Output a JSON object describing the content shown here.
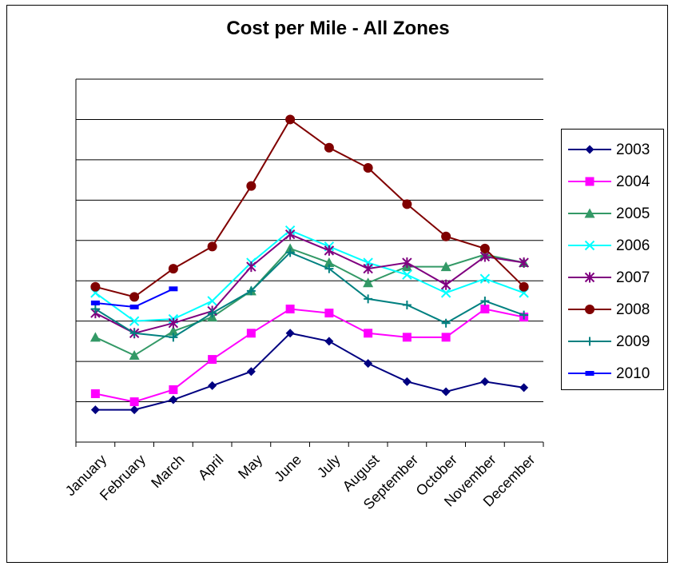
{
  "chart_data": {
    "type": "line",
    "title": "Cost per Mile - All Zones",
    "xlabel": "",
    "ylabel": "",
    "categories": [
      "January",
      "February",
      "March",
      "April",
      "May",
      "June",
      "July",
      "August",
      "September",
      "October",
      "November",
      "December"
    ],
    "ylim": [
      0,
      9
    ],
    "grid": true,
    "legend_position": "right",
    "series": [
      {
        "name": "2003",
        "color": "#000080",
        "marker": "diamond",
        "values": [
          0.8,
          0.8,
          1.05,
          1.4,
          1.75,
          2.7,
          2.5,
          1.95,
          1.5,
          1.25,
          1.5,
          1.35
        ]
      },
      {
        "name": "2004",
        "color": "#FF00FF",
        "marker": "square",
        "values": [
          1.2,
          1.0,
          1.3,
          2.05,
          2.7,
          3.3,
          3.2,
          2.7,
          2.6,
          2.6,
          3.3,
          3.1
        ]
      },
      {
        "name": "2005",
        "color": "#339966",
        "marker": "triangle",
        "values": [
          2.6,
          2.15,
          2.75,
          3.1,
          3.75,
          4.8,
          4.45,
          3.95,
          4.35,
          4.35,
          4.65,
          4.45
        ]
      },
      {
        "name": "2006",
        "color": "#00FFFF",
        "marker": "x",
        "values": [
          3.7,
          3.0,
          3.05,
          3.5,
          4.45,
          5.25,
          4.85,
          4.45,
          4.15,
          3.7,
          4.05,
          3.7
        ]
      },
      {
        "name": "2007",
        "color": "#800080",
        "marker": "star",
        "values": [
          3.2,
          2.7,
          2.95,
          3.25,
          4.35,
          5.15,
          4.75,
          4.3,
          4.45,
          3.9,
          4.6,
          4.45
        ]
      },
      {
        "name": "2008",
        "color": "#800000",
        "marker": "circle",
        "values": [
          3.85,
          3.6,
          4.3,
          4.85,
          6.35,
          8.0,
          7.3,
          6.8,
          5.9,
          5.1,
          4.8,
          3.85
        ]
      },
      {
        "name": "2009",
        "color": "#008080",
        "marker": "plus",
        "values": [
          3.3,
          2.7,
          2.6,
          3.2,
          3.75,
          4.7,
          4.3,
          3.55,
          3.4,
          2.95,
          3.5,
          3.15
        ]
      },
      {
        "name": "2010",
        "color": "#0000FF",
        "marker": "dash",
        "values": [
          3.45,
          3.35,
          3.8,
          null,
          null,
          null,
          null,
          null,
          null,
          null,
          null,
          null
        ]
      }
    ]
  }
}
